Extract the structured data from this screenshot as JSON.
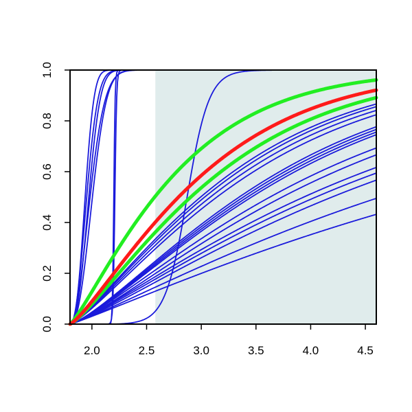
{
  "chart_data": {
    "type": "line",
    "title": "",
    "xlabel": "",
    "ylabel": "",
    "xlim": [
      1.8,
      4.6
    ],
    "ylim": [
      0,
      1
    ],
    "grid": false,
    "legend": "none",
    "shaded_region": {
      "x_from": 2.58,
      "x_to": 4.6,
      "color": "#e0ecec"
    },
    "x_ticks": [
      2.0,
      2.5,
      3.0,
      3.5,
      4.0,
      4.5
    ],
    "x_tick_labels": [
      "2.0",
      "2.5",
      "3.0",
      "3.5",
      "4.0",
      "4.5"
    ],
    "y_ticks": [
      0.0,
      0.2,
      0.4,
      0.6,
      0.8,
      1.0
    ],
    "y_tick_labels": [
      "0.0",
      "0.2",
      "0.4",
      "0.6",
      "0.8",
      "1.0"
    ],
    "colors": {
      "samples": "#1a1adb",
      "central": "#ff1a1a",
      "bounds": "#22ee22"
    },
    "curve_family": "cdf_starting_at_x0_1.8",
    "series": [
      {
        "group": "central",
        "kind": "weibull",
        "k": 1.25,
        "s": 1.33
      },
      {
        "group": "bounds",
        "kind": "weibull",
        "k": 1.2,
        "s": 1.05
      },
      {
        "group": "bounds",
        "kind": "weibull",
        "k": 1.25,
        "s": 1.48
      },
      {
        "group": "samples",
        "kind": "weibull",
        "k": 2.5,
        "s": 0.16
      },
      {
        "group": "samples",
        "kind": "weibull",
        "k": 2.2,
        "s": 0.18
      },
      {
        "group": "samples",
        "kind": "weibull",
        "k": 2.0,
        "s": 0.22
      },
      {
        "group": "samples",
        "kind": "weibull",
        "k": 2.4,
        "s": 0.2
      },
      {
        "group": "samples",
        "kind": "weibull",
        "k": 2.3,
        "s": 0.24
      },
      {
        "group": "samples",
        "kind": "logistic",
        "m": 2.21,
        "w": 0.008,
        "start": 2.0
      },
      {
        "group": "samples",
        "kind": "logistic",
        "m": 2.2,
        "w": 0.006,
        "start": 2.17
      },
      {
        "group": "samples",
        "kind": "logistic",
        "m": 2.87,
        "w": 0.1,
        "start": 2.2
      },
      {
        "group": "samples",
        "kind": "weibull",
        "k": 1.25,
        "s": 1.6
      },
      {
        "group": "samples",
        "kind": "weibull",
        "k": 1.25,
        "s": 1.65
      },
      {
        "group": "samples",
        "kind": "weibull",
        "k": 1.25,
        "s": 1.72
      },
      {
        "group": "samples",
        "kind": "weibull",
        "k": 1.25,
        "s": 1.8
      },
      {
        "group": "samples",
        "kind": "weibull",
        "k": 1.3,
        "s": 2.05
      },
      {
        "group": "samples",
        "kind": "weibull",
        "k": 1.3,
        "s": 2.1
      },
      {
        "group": "samples",
        "kind": "weibull",
        "k": 1.3,
        "s": 2.15
      },
      {
        "group": "samples",
        "kind": "weibull",
        "k": 1.3,
        "s": 2.2
      },
      {
        "group": "samples",
        "kind": "weibull",
        "k": 1.25,
        "s": 2.45
      },
      {
        "group": "samples",
        "kind": "weibull",
        "k": 1.25,
        "s": 2.6
      },
      {
        "group": "samples",
        "kind": "weibull",
        "k": 1.2,
        "s": 2.9
      },
      {
        "group": "samples",
        "kind": "weibull",
        "k": 1.2,
        "s": 3.05
      },
      {
        "group": "samples",
        "kind": "weibull",
        "k": 1.2,
        "s": 3.25
      },
      {
        "group": "samples",
        "kind": "weibull",
        "k": 1.15,
        "s": 3.9
      },
      {
        "group": "samples",
        "kind": "weibull",
        "k": 1.1,
        "s": 4.7
      }
    ]
  }
}
